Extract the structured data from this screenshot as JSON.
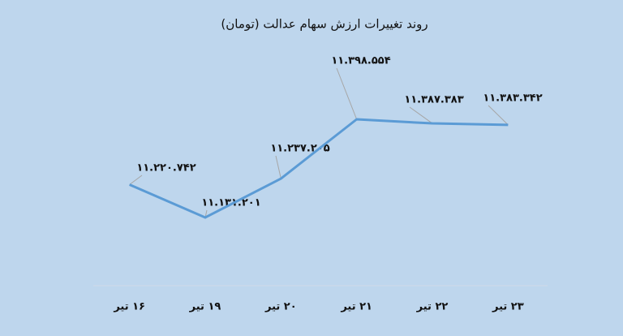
{
  "chart_data": {
    "type": "line",
    "title": "روند تغییرات ارزش سهام عدالت (تومان)",
    "categories": [
      "۱۶ تیر",
      "۱۹ تیر",
      "۲۰ تیر",
      "۲۱ تیر",
      "۲۲ تیر",
      "۲۳ تیر"
    ],
    "values": [
      11220742,
      11131201,
      11237205,
      11398554,
      11387383,
      11383342
    ],
    "value_labels": [
      "۱۱.۲۲۰.۷۴۲",
      "۱۱.۱۳۱.۲۰۱",
      "۱۱.۲۳۷.۲۰۵",
      "۱۱.۳۹۸.۵۵۴",
      "۱۱.۳۸۷.۳۸۳",
      "۱۱.۳۸۳.۳۴۲"
    ],
    "color": "#5b9bd5"
  }
}
